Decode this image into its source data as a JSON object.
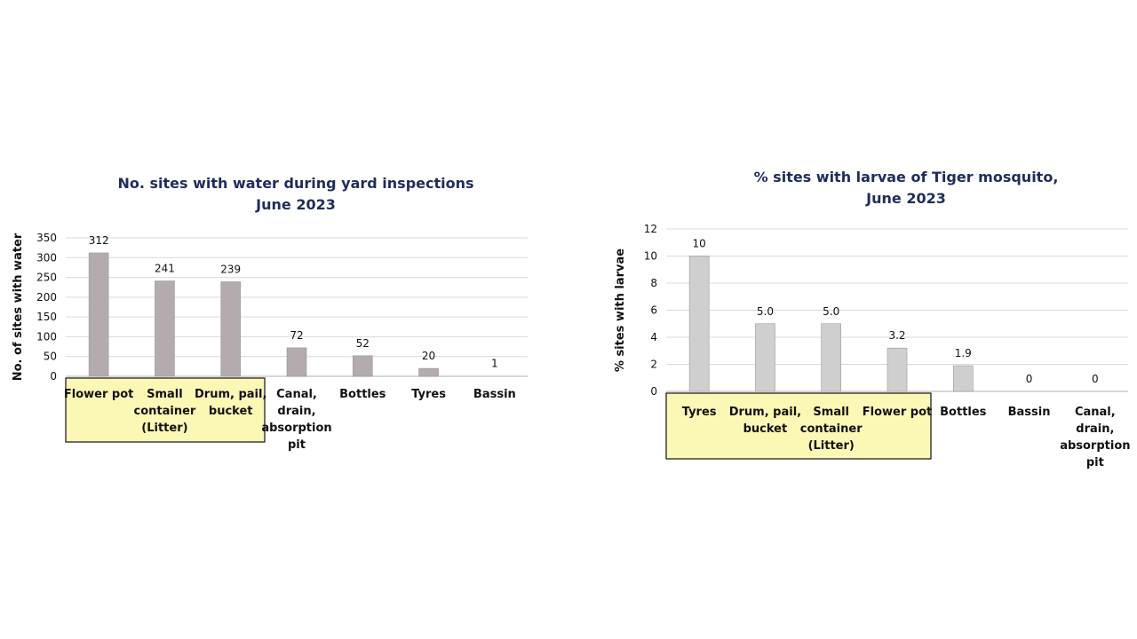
{
  "chart_data": [
    {
      "type": "bar",
      "title": [
        "No. sites with water during yard inspections",
        "June 2023"
      ],
      "xlabel": "",
      "ylabel": "No. of sites with water",
      "ylim": [
        0,
        350
      ],
      "yticks": [
        0,
        50,
        100,
        150,
        200,
        250,
        300,
        350
      ],
      "grid": true,
      "categories": [
        [
          "Flower pot"
        ],
        [
          "Small",
          "container",
          "(Litter)"
        ],
        [
          "Drum, pail,",
          "bucket"
        ],
        [
          "Canal,",
          "drain,",
          "absorption",
          "pit"
        ],
        [
          "Bottles"
        ],
        [
          "Tyres"
        ],
        [
          "Bassin"
        ]
      ],
      "values": [
        312,
        241,
        239,
        72,
        52,
        20,
        1
      ],
      "data_labels": [
        "312",
        "241",
        "239",
        "72",
        "52",
        "20",
        "1"
      ],
      "highlighted_categories": [
        "Flower pot",
        "Small container (Litter)",
        "Drum, pail, bucket"
      ],
      "bar_color": "#b3abad",
      "highlight_color": "#fbf7b5"
    },
    {
      "type": "bar",
      "title": [
        "% sites with larvae of Tiger mosquito,",
        "June 2023"
      ],
      "xlabel": "",
      "ylabel": "% sites with larvae",
      "ylim": [
        0,
        12
      ],
      "yticks": [
        0,
        2,
        4,
        6,
        8,
        10,
        12
      ],
      "grid": true,
      "categories": [
        [
          "Tyres"
        ],
        [
          "Drum, pail,",
          "bucket"
        ],
        [
          "Small",
          "container",
          "(Litter)"
        ],
        [
          "Flower pot"
        ],
        [
          "Bottles"
        ],
        [
          "Bassin"
        ],
        [
          "Canal,",
          "drain,",
          "absorption",
          "pit"
        ]
      ],
      "values": [
        10,
        5.0,
        5.0,
        3.2,
        1.9,
        0,
        0
      ],
      "data_labels": [
        "10",
        "5.0",
        "5.0",
        "3.2",
        "1.9",
        "0",
        "0"
      ],
      "highlighted_categories": [
        "Tyres",
        "Drum, pail, bucket",
        "Small container (Litter)",
        "Flower pot"
      ],
      "bar_color": "#cfcfcf",
      "highlight_color": "#fbf7b5"
    }
  ]
}
